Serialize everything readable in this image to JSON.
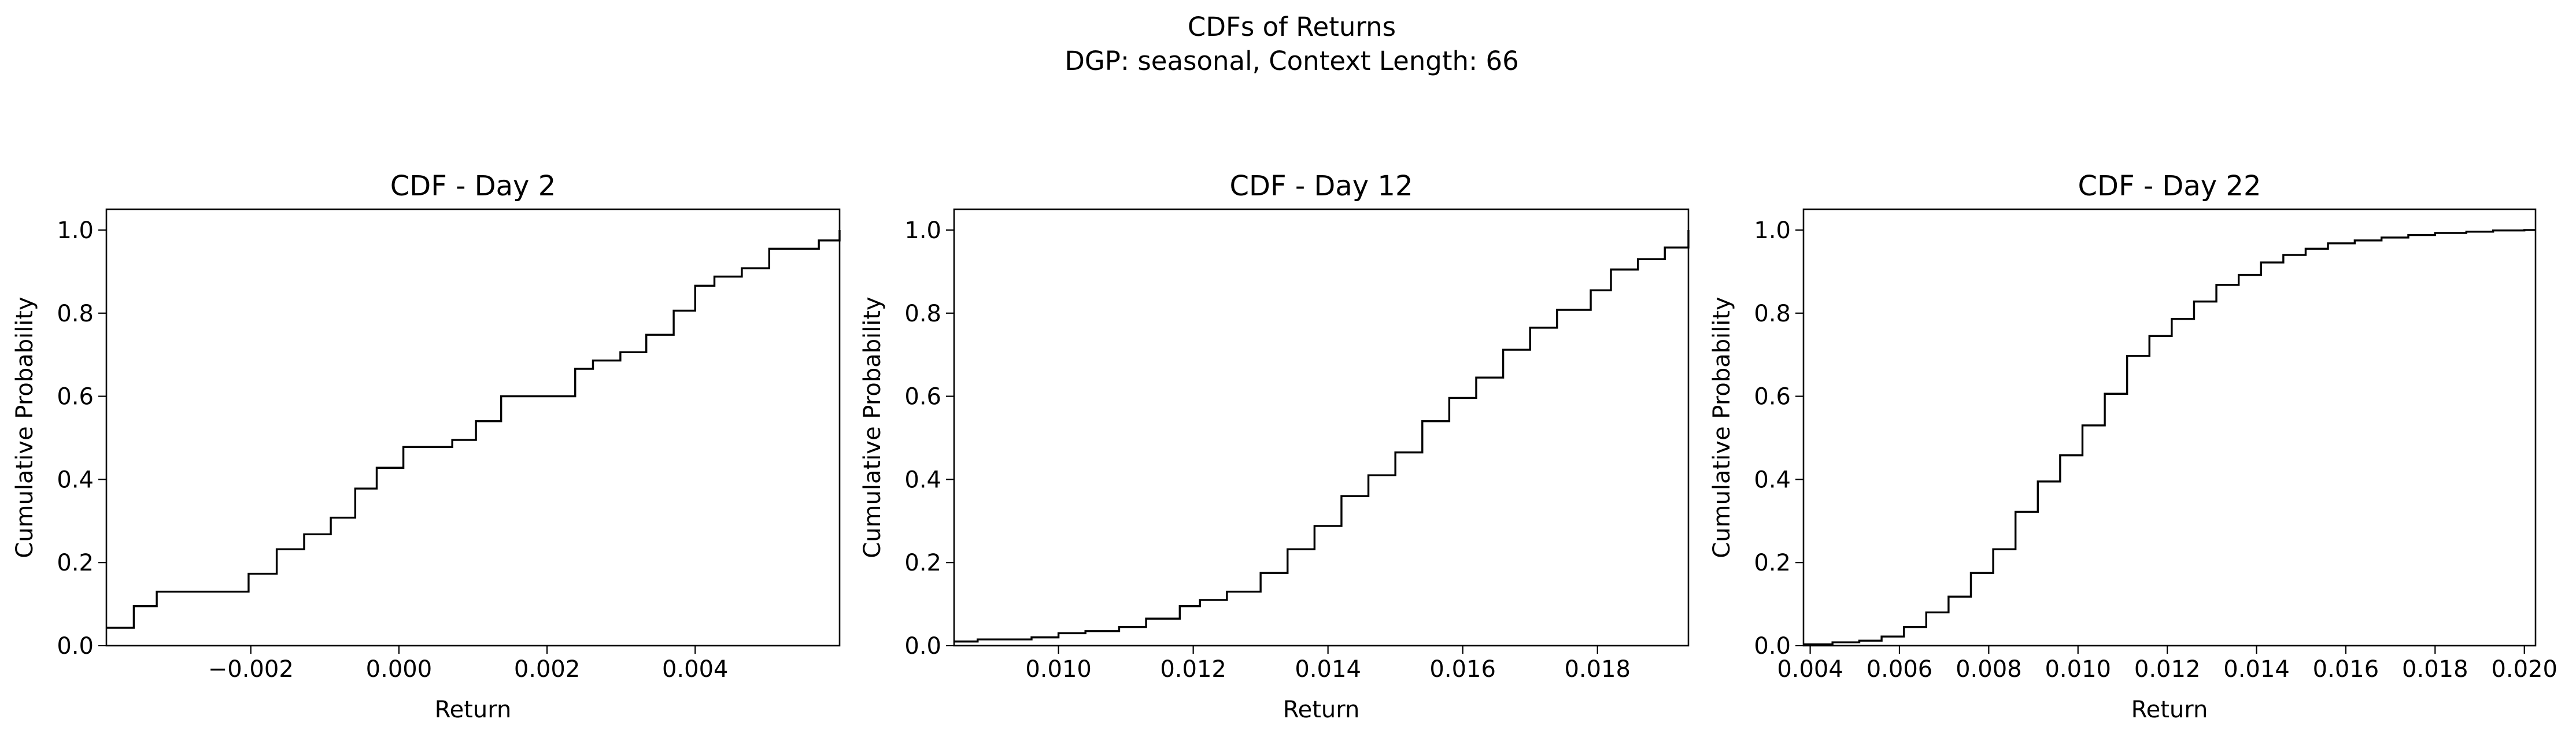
{
  "figure": {
    "title_line1": "CDFs of Returns",
    "title_line2": "DGP: seasonal, Context Length: 66",
    "line_color": "#000000",
    "background": "#ffffff"
  },
  "chart_data": [
    {
      "type": "line",
      "step": "post",
      "title": "CDF - Day 2",
      "xlabel": "Return",
      "ylabel": "Cumulative Probability",
      "xlim": [
        -0.00395,
        0.00595
      ],
      "ylim": [
        0.0,
        1.05
      ],
      "xticks": [
        -0.002,
        0.0,
        0.002,
        0.004
      ],
      "xtick_labels": [
        "−0.002",
        "0.000",
        "0.002",
        "0.004"
      ],
      "yticks": [
        0.0,
        0.2,
        0.4,
        0.6,
        0.8,
        1.0
      ],
      "ytick_labels": [
        "0.0",
        "0.2",
        "0.4",
        "0.6",
        "0.8",
        "1.0"
      ],
      "grid": false,
      "series": [
        {
          "x": [
            -0.00395,
            -0.00358,
            -0.00327,
            -0.00233,
            -0.00203,
            -0.00165,
            -0.00128,
            -0.00092,
            -0.00059,
            -0.0003,
            6e-05,
            0.00072,
            0.00104,
            0.00138,
            0.00238,
            0.00262,
            0.00299,
            0.00334,
            0.00371,
            0.004,
            0.00426,
            0.00463,
            0.005,
            0.00567,
            0.00595
          ],
          "y": [
            0.043,
            0.095,
            0.13,
            0.13,
            0.173,
            0.232,
            0.268,
            0.308,
            0.378,
            0.428,
            0.478,
            0.495,
            0.54,
            0.6,
            0.666,
            0.686,
            0.706,
            0.748,
            0.806,
            0.866,
            0.888,
            0.908,
            0.955,
            0.975,
            1.0
          ]
        }
      ]
    },
    {
      "type": "line",
      "step": "post",
      "title": "CDF - Day 12",
      "xlabel": "Return",
      "ylabel": "Cumulative Probability",
      "xlim": [
        0.00845,
        0.01935
      ],
      "ylim": [
        0.0,
        1.05
      ],
      "xticks": [
        0.01,
        0.012,
        0.014,
        0.016,
        0.018
      ],
      "xtick_labels": [
        "0.010",
        "0.012",
        "0.014",
        "0.016",
        "0.018"
      ],
      "yticks": [
        0.0,
        0.2,
        0.4,
        0.6,
        0.8,
        1.0
      ],
      "ytick_labels": [
        "0.0",
        "0.2",
        "0.4",
        "0.6",
        "0.8",
        "1.0"
      ],
      "grid": false,
      "series": [
        {
          "x": [
            0.00845,
            0.0088,
            0.0096,
            0.01,
            0.0104,
            0.0109,
            0.0113,
            0.0118,
            0.0121,
            0.0125,
            0.013,
            0.0134,
            0.0138,
            0.0142,
            0.0146,
            0.015,
            0.0154,
            0.0158,
            0.0162,
            0.0166,
            0.017,
            0.0174,
            0.0179,
            0.0182,
            0.0186,
            0.019,
            0.01935
          ],
          "y": [
            0.01,
            0.015,
            0.02,
            0.03,
            0.035,
            0.045,
            0.065,
            0.095,
            0.11,
            0.13,
            0.175,
            0.232,
            0.288,
            0.36,
            0.41,
            0.465,
            0.54,
            0.596,
            0.645,
            0.712,
            0.765,
            0.808,
            0.855,
            0.905,
            0.93,
            0.958,
            1.0
          ]
        }
      ]
    },
    {
      "type": "line",
      "step": "post",
      "title": "CDF - Day 22",
      "xlabel": "Return",
      "ylabel": "Cumulative Probability",
      "xlim": [
        0.00385,
        0.02025
      ],
      "ylim": [
        0.0,
        1.05
      ],
      "xticks": [
        0.004,
        0.006,
        0.008,
        0.01,
        0.012,
        0.014,
        0.016,
        0.018,
        0.02
      ],
      "xtick_labels": [
        "0.004",
        "0.006",
        "0.008",
        "0.010",
        "0.012",
        "0.014",
        "0.016",
        "0.018",
        "0.020"
      ],
      "yticks": [
        0.0,
        0.2,
        0.4,
        0.6,
        0.8,
        1.0
      ],
      "ytick_labels": [
        "0.0",
        "0.2",
        "0.4",
        "0.6",
        "0.8",
        "1.0"
      ],
      "grid": false,
      "series": [
        {
          "x": [
            0.00385,
            0.0045,
            0.0051,
            0.0056,
            0.0061,
            0.0066,
            0.0071,
            0.0076,
            0.0081,
            0.0086,
            0.0091,
            0.0096,
            0.0101,
            0.0106,
            0.0111,
            0.0116,
            0.0121,
            0.0126,
            0.0131,
            0.0136,
            0.0141,
            0.0146,
            0.0151,
            0.0156,
            0.0162,
            0.0168,
            0.0174,
            0.018,
            0.0187,
            0.0193,
            0.02,
            0.02025
          ],
          "y": [
            0.003,
            0.008,
            0.012,
            0.022,
            0.045,
            0.08,
            0.118,
            0.175,
            0.232,
            0.322,
            0.395,
            0.458,
            0.53,
            0.606,
            0.697,
            0.745,
            0.786,
            0.828,
            0.868,
            0.892,
            0.922,
            0.94,
            0.955,
            0.968,
            0.975,
            0.982,
            0.988,
            0.993,
            0.996,
            0.999,
            1.0,
            1.0
          ]
        }
      ]
    }
  ]
}
